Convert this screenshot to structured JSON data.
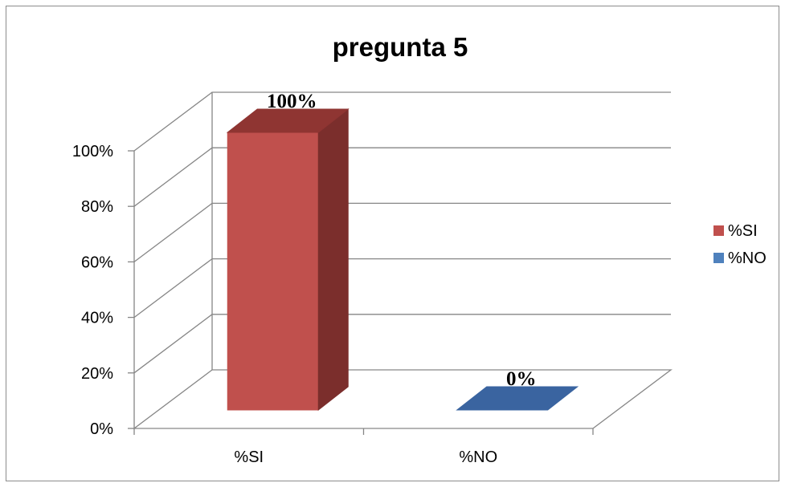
{
  "chart_data": {
    "type": "bar",
    "style": "3d-clustered-column",
    "title": "pregunta 5",
    "categories": [
      "%SI",
      "%NO"
    ],
    "series": [
      {
        "name": "%SI",
        "values": [
          1.0,
          null
        ],
        "data_label": "100%",
        "color": "#c0504d",
        "side_color": "#7b2e2c",
        "top_color": "#8f3532"
      },
      {
        "name": "%NO",
        "values": [
          null,
          0.0
        ],
        "data_label": "0%",
        "color": "#4f81bd",
        "side_color": "#2f5f93",
        "top_color": "#3a64a0"
      }
    ],
    "y_ticks": [
      "0%",
      "20%",
      "40%",
      "60%",
      "80%",
      "100%"
    ],
    "ylim": [
      0,
      1
    ],
    "grid": true,
    "legend_position": "right",
    "grid_color": "#868686",
    "axis_color": "#868686"
  }
}
